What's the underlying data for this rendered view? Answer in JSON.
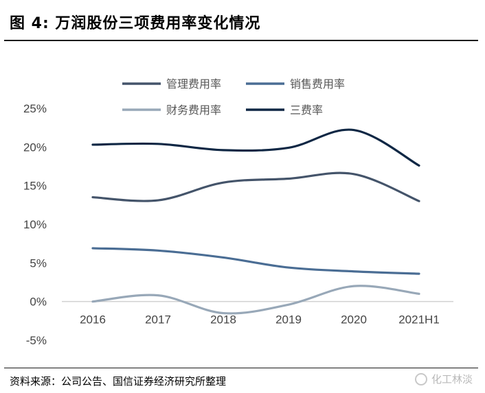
{
  "header": {
    "title": "图 4:  万润股份三项费用率变化情况"
  },
  "footer": {
    "source": "资料来源：公司公告、国信证券经济研究所整理",
    "watermark": "化工林淡"
  },
  "chart_data": {
    "type": "line",
    "title": "",
    "xlabel": "",
    "ylabel": "",
    "categories": [
      "2016",
      "2017",
      "2018",
      "2019",
      "2020",
      "2021H1"
    ],
    "ylim": [
      -0.05,
      0.25
    ],
    "yticks": [
      "25%",
      "20%",
      "15%",
      "10%",
      "5%",
      "0%",
      "-5%"
    ],
    "ytick_values": [
      0.25,
      0.2,
      0.15,
      0.1,
      0.05,
      0.0,
      -0.05
    ],
    "grid": false,
    "legend": "top",
    "series": [
      {
        "name": "管理费用率",
        "color": "#44546a",
        "values": [
          0.135,
          0.131,
          0.154,
          0.159,
          0.165,
          0.13
        ]
      },
      {
        "name": "销售费用率",
        "color": "#4a6d94",
        "values": [
          0.069,
          0.066,
          0.057,
          0.044,
          0.039,
          0.036
        ]
      },
      {
        "name": "财务费用率",
        "color": "#98a8b8",
        "values": [
          0.0,
          0.008,
          -0.015,
          -0.004,
          0.02,
          0.01
        ]
      },
      {
        "name": "三费率",
        "color": "#0f2744",
        "values": [
          0.203,
          0.204,
          0.196,
          0.199,
          0.222,
          0.176
        ]
      }
    ]
  }
}
